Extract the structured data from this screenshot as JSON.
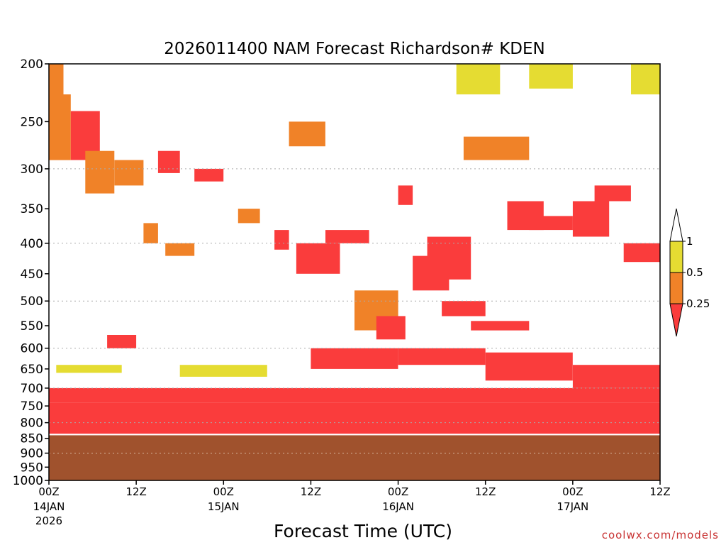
{
  "chart_data": {
    "type": "heatmap",
    "title": "2026011400 NAM Forecast Richardson# KDEN",
    "xlabel": "Forecast Time (UTC)",
    "ylabel": "",
    "credit": "coolwx.com/models",
    "y_scale": "log",
    "y_inverted": true,
    "ylim": [
      1000,
      200
    ],
    "xlim_hours": [
      0,
      84
    ],
    "y_ticks": [
      200,
      250,
      300,
      350,
      400,
      450,
      500,
      550,
      600,
      650,
      700,
      750,
      800,
      850,
      900,
      950,
      1000
    ],
    "x_ticks": [
      {
        "hour": 0,
        "label": "00Z",
        "date": "14JAN",
        "year": "2026"
      },
      {
        "hour": 12,
        "label": "12Z",
        "date": "",
        "year": ""
      },
      {
        "hour": 24,
        "label": "00Z",
        "date": "15JAN",
        "year": ""
      },
      {
        "hour": 36,
        "label": "12Z",
        "date": "",
        "year": ""
      },
      {
        "hour": 48,
        "label": "00Z",
        "date": "16JAN",
        "year": ""
      },
      {
        "hour": 60,
        "label": "12Z",
        "date": "",
        "year": ""
      },
      {
        "hour": 72,
        "label": "00Z",
        "date": "17JAN",
        "year": ""
      },
      {
        "hour": 84,
        "label": "12Z",
        "date": "",
        "year": ""
      }
    ],
    "gridlines_dotted_at": [
      300,
      400,
      500,
      600,
      700,
      800,
      900,
      1000
    ],
    "ground_surface_hpa": 840,
    "ground_color": "#a0522d",
    "legend": {
      "placement": "right",
      "thresholds": [
        "1",
        "0.5",
        "0.25"
      ],
      "bins": [
        {
          "range": "> 1",
          "color": "#ffffff"
        },
        {
          "range": "0.5 - 1",
          "color": "#e5dc32"
        },
        {
          "range": "0.25 - 0.5",
          "color": "#f08228"
        },
        {
          "range": "< 0.25",
          "color": "#fa3c3c"
        }
      ]
    },
    "regions": [
      {
        "x": [
          0,
          2
        ],
        "p": [
          200,
          225
        ],
        "bin": 2
      },
      {
        "x": [
          0,
          3
        ],
        "p": [
          225,
          290
        ],
        "bin": 2
      },
      {
        "x": [
          3,
          7
        ],
        "p": [
          240,
          290
        ],
        "bin": 3
      },
      {
        "x": [
          5,
          9
        ],
        "p": [
          280,
          330
        ],
        "bin": 2
      },
      {
        "x": [
          9,
          13
        ],
        "p": [
          290,
          320
        ],
        "bin": 2
      },
      {
        "x": [
          15,
          18
        ],
        "p": [
          280,
          305
        ],
        "bin": 3
      },
      {
        "x": [
          20,
          24
        ],
        "p": [
          300,
          315
        ],
        "bin": 3
      },
      {
        "x": [
          13,
          15
        ],
        "p": [
          370,
          400
        ],
        "bin": 2
      },
      {
        "x": [
          16,
          20
        ],
        "p": [
          400,
          420
        ],
        "bin": 2
      },
      {
        "x": [
          26,
          29
        ],
        "p": [
          350,
          370
        ],
        "bin": 2
      },
      {
        "x": [
          31,
          33
        ],
        "p": [
          380,
          410
        ],
        "bin": 3
      },
      {
        "x": [
          34,
          40
        ],
        "p": [
          400,
          450
        ],
        "bin": 3
      },
      {
        "x": [
          38,
          44
        ],
        "p": [
          380,
          400
        ],
        "bin": 3
      },
      {
        "x": [
          42,
          48
        ],
        "p": [
          480,
          560
        ],
        "bin": 2
      },
      {
        "x": [
          45,
          49
        ],
        "p": [
          530,
          580
        ],
        "bin": 3
      },
      {
        "x": [
          50,
          55
        ],
        "p": [
          420,
          480
        ],
        "bin": 3
      },
      {
        "x": [
          52,
          58
        ],
        "p": [
          390,
          460
        ],
        "bin": 3
      },
      {
        "x": [
          48,
          50
        ],
        "p": [
          320,
          345
        ],
        "bin": 3
      },
      {
        "x": [
          54,
          60
        ],
        "p": [
          500,
          530
        ],
        "bin": 3
      },
      {
        "x": [
          58,
          66
        ],
        "p": [
          540,
          560
        ],
        "bin": 3
      },
      {
        "x": [
          63,
          68
        ],
        "p": [
          340,
          380
        ],
        "bin": 3
      },
      {
        "x": [
          66,
          72
        ],
        "p": [
          360,
          380
        ],
        "bin": 3
      },
      {
        "x": [
          72,
          77
        ],
        "p": [
          340,
          390
        ],
        "bin": 3
      },
      {
        "x": [
          75,
          80
        ],
        "p": [
          320,
          340
        ],
        "bin": 3
      },
      {
        "x": [
          79,
          84
        ],
        "p": [
          400,
          430
        ],
        "bin": 3
      },
      {
        "x": [
          56,
          62
        ],
        "p": [
          200,
          225
        ],
        "bin": 1
      },
      {
        "x": [
          66,
          72
        ],
        "p": [
          200,
          220
        ],
        "bin": 1
      },
      {
        "x": [
          80,
          84
        ],
        "p": [
          200,
          225
        ],
        "bin": 1
      },
      {
        "x": [
          57,
          66
        ],
        "p": [
          265,
          290
        ],
        "bin": 2
      },
      {
        "x": [
          33,
          38
        ],
        "p": [
          250,
          275
        ],
        "bin": 2
      },
      {
        "x": [
          1,
          10
        ],
        "p": [
          640,
          660
        ],
        "bin": 1
      },
      {
        "x": [
          8,
          12
        ],
        "p": [
          570,
          600
        ],
        "bin": 3
      },
      {
        "x": [
          18,
          30
        ],
        "p": [
          640,
          670
        ],
        "bin": 1
      },
      {
        "x": [
          36,
          48
        ],
        "p": [
          600,
          650
        ],
        "bin": 3
      },
      {
        "x": [
          48,
          60
        ],
        "p": [
          600,
          640
        ],
        "bin": 3
      },
      {
        "x": [
          60,
          72
        ],
        "p": [
          610,
          680
        ],
        "bin": 3
      },
      {
        "x": [
          72,
          84
        ],
        "p": [
          640,
          700
        ],
        "bin": 3
      },
      {
        "x": [
          0,
          84
        ],
        "p": [
          700,
          740
        ],
        "bin": 3
      },
      {
        "x": [
          0,
          84
        ],
        "p": [
          740,
          790
        ],
        "bin": 3
      },
      {
        "x": [
          0,
          84
        ],
        "p": [
          790,
          835
        ],
        "bin": 3
      }
    ]
  }
}
